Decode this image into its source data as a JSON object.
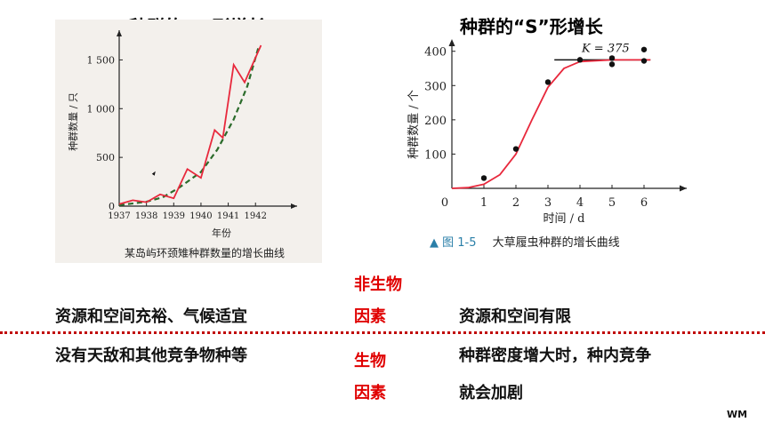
{
  "left_title": "种群的“J”形增长",
  "right_title": "种群的“S”形增长",
  "left_caption": "某岛屿环颈雉种群数量的增长曲线",
  "right_caption": {
    "fig_label": "▲ 图 1-5",
    "text": "大草履虫种群的增长曲线"
  },
  "labels": {
    "nonbio_1": "非生物",
    "nonbio_2": "因素",
    "bio_1": "生物",
    "bio_2": "因素"
  },
  "rows": {
    "left_1": "资源和空间充裕、气候适宜",
    "left_2": "没有天敌和其他竞争物种等",
    "right_1": "资源和空间有限",
    "right_2a": "种群密度增大时，种内竞争",
    "right_2b": "就会加剧"
  },
  "watermark": "WM",
  "colors": {
    "red_line": "#e8283c",
    "green_dash": "#2b6b2b",
    "red_text": "#e00000"
  },
  "chart_data": [
    {
      "type": "line",
      "xlabel": "年份",
      "ylabel": "种群数量 / 只",
      "xticks": [
        "1937",
        "1938",
        "1939",
        "1940",
        "1941",
        "1942"
      ],
      "yticks": [
        "0",
        "500",
        "1 000",
        "1 500"
      ],
      "xlim": [
        1937,
        1943.2
      ],
      "ylim": [
        0,
        1750
      ],
      "series": [
        {
          "values": [
            [
              1937,
              20
            ],
            [
              1937.5,
              60
            ],
            [
              1938,
              40
            ],
            [
              1938.5,
              120
            ],
            [
              1939,
              80
            ],
            [
              1939.5,
              380
            ],
            [
              1940,
              290
            ],
            [
              1940.5,
              780
            ],
            [
              1940.8,
              700
            ],
            [
              1941.2,
              1450
            ],
            [
              1941.6,
              1270
            ],
            [
              1942.2,
              1650
            ]
          ]
        },
        {
          "values": [
            [
              1937,
              10
            ],
            [
              1938,
              45
            ],
            [
              1938.6,
              90
            ],
            [
              1939.2,
              190
            ],
            [
              1940,
              350
            ],
            [
              1940.6,
              580
            ],
            [
              1941.2,
              890
            ],
            [
              1941.7,
              1230
            ],
            [
              1942.1,
              1620
            ]
          ]
        }
      ]
    },
    {
      "type": "line",
      "xlabel": "时间 / d",
      "ylabel": "种群数量 / 个",
      "xticks": [
        "0",
        "1",
        "2",
        "3",
        "4",
        "5",
        "6"
      ],
      "yticks": [
        "100",
        "200",
        "300",
        "400"
      ],
      "xlim": [
        0,
        7
      ],
      "ylim": [
        0,
        420
      ],
      "annotation": "K = 375",
      "asymptote": 375,
      "series": [
        {
          "points": [
            [
              1,
              30
            ],
            [
              2,
              115
            ],
            [
              3,
              310
            ],
            [
              4,
              375
            ],
            [
              5,
              380
            ],
            [
              5,
              362
            ],
            [
              6,
              405
            ],
            [
              6,
              372
            ]
          ]
        },
        {
          "curve": [
            [
              0,
              0
            ],
            [
              0.5,
              2
            ],
            [
              1,
              12
            ],
            [
              1.5,
              40
            ],
            [
              2,
              100
            ],
            [
              2.5,
              200
            ],
            [
              3,
              295
            ],
            [
              3.5,
              350
            ],
            [
              4,
              370
            ],
            [
              5,
              375
            ],
            [
              6,
              375
            ],
            [
              6.2,
              375
            ]
          ]
        }
      ]
    }
  ]
}
